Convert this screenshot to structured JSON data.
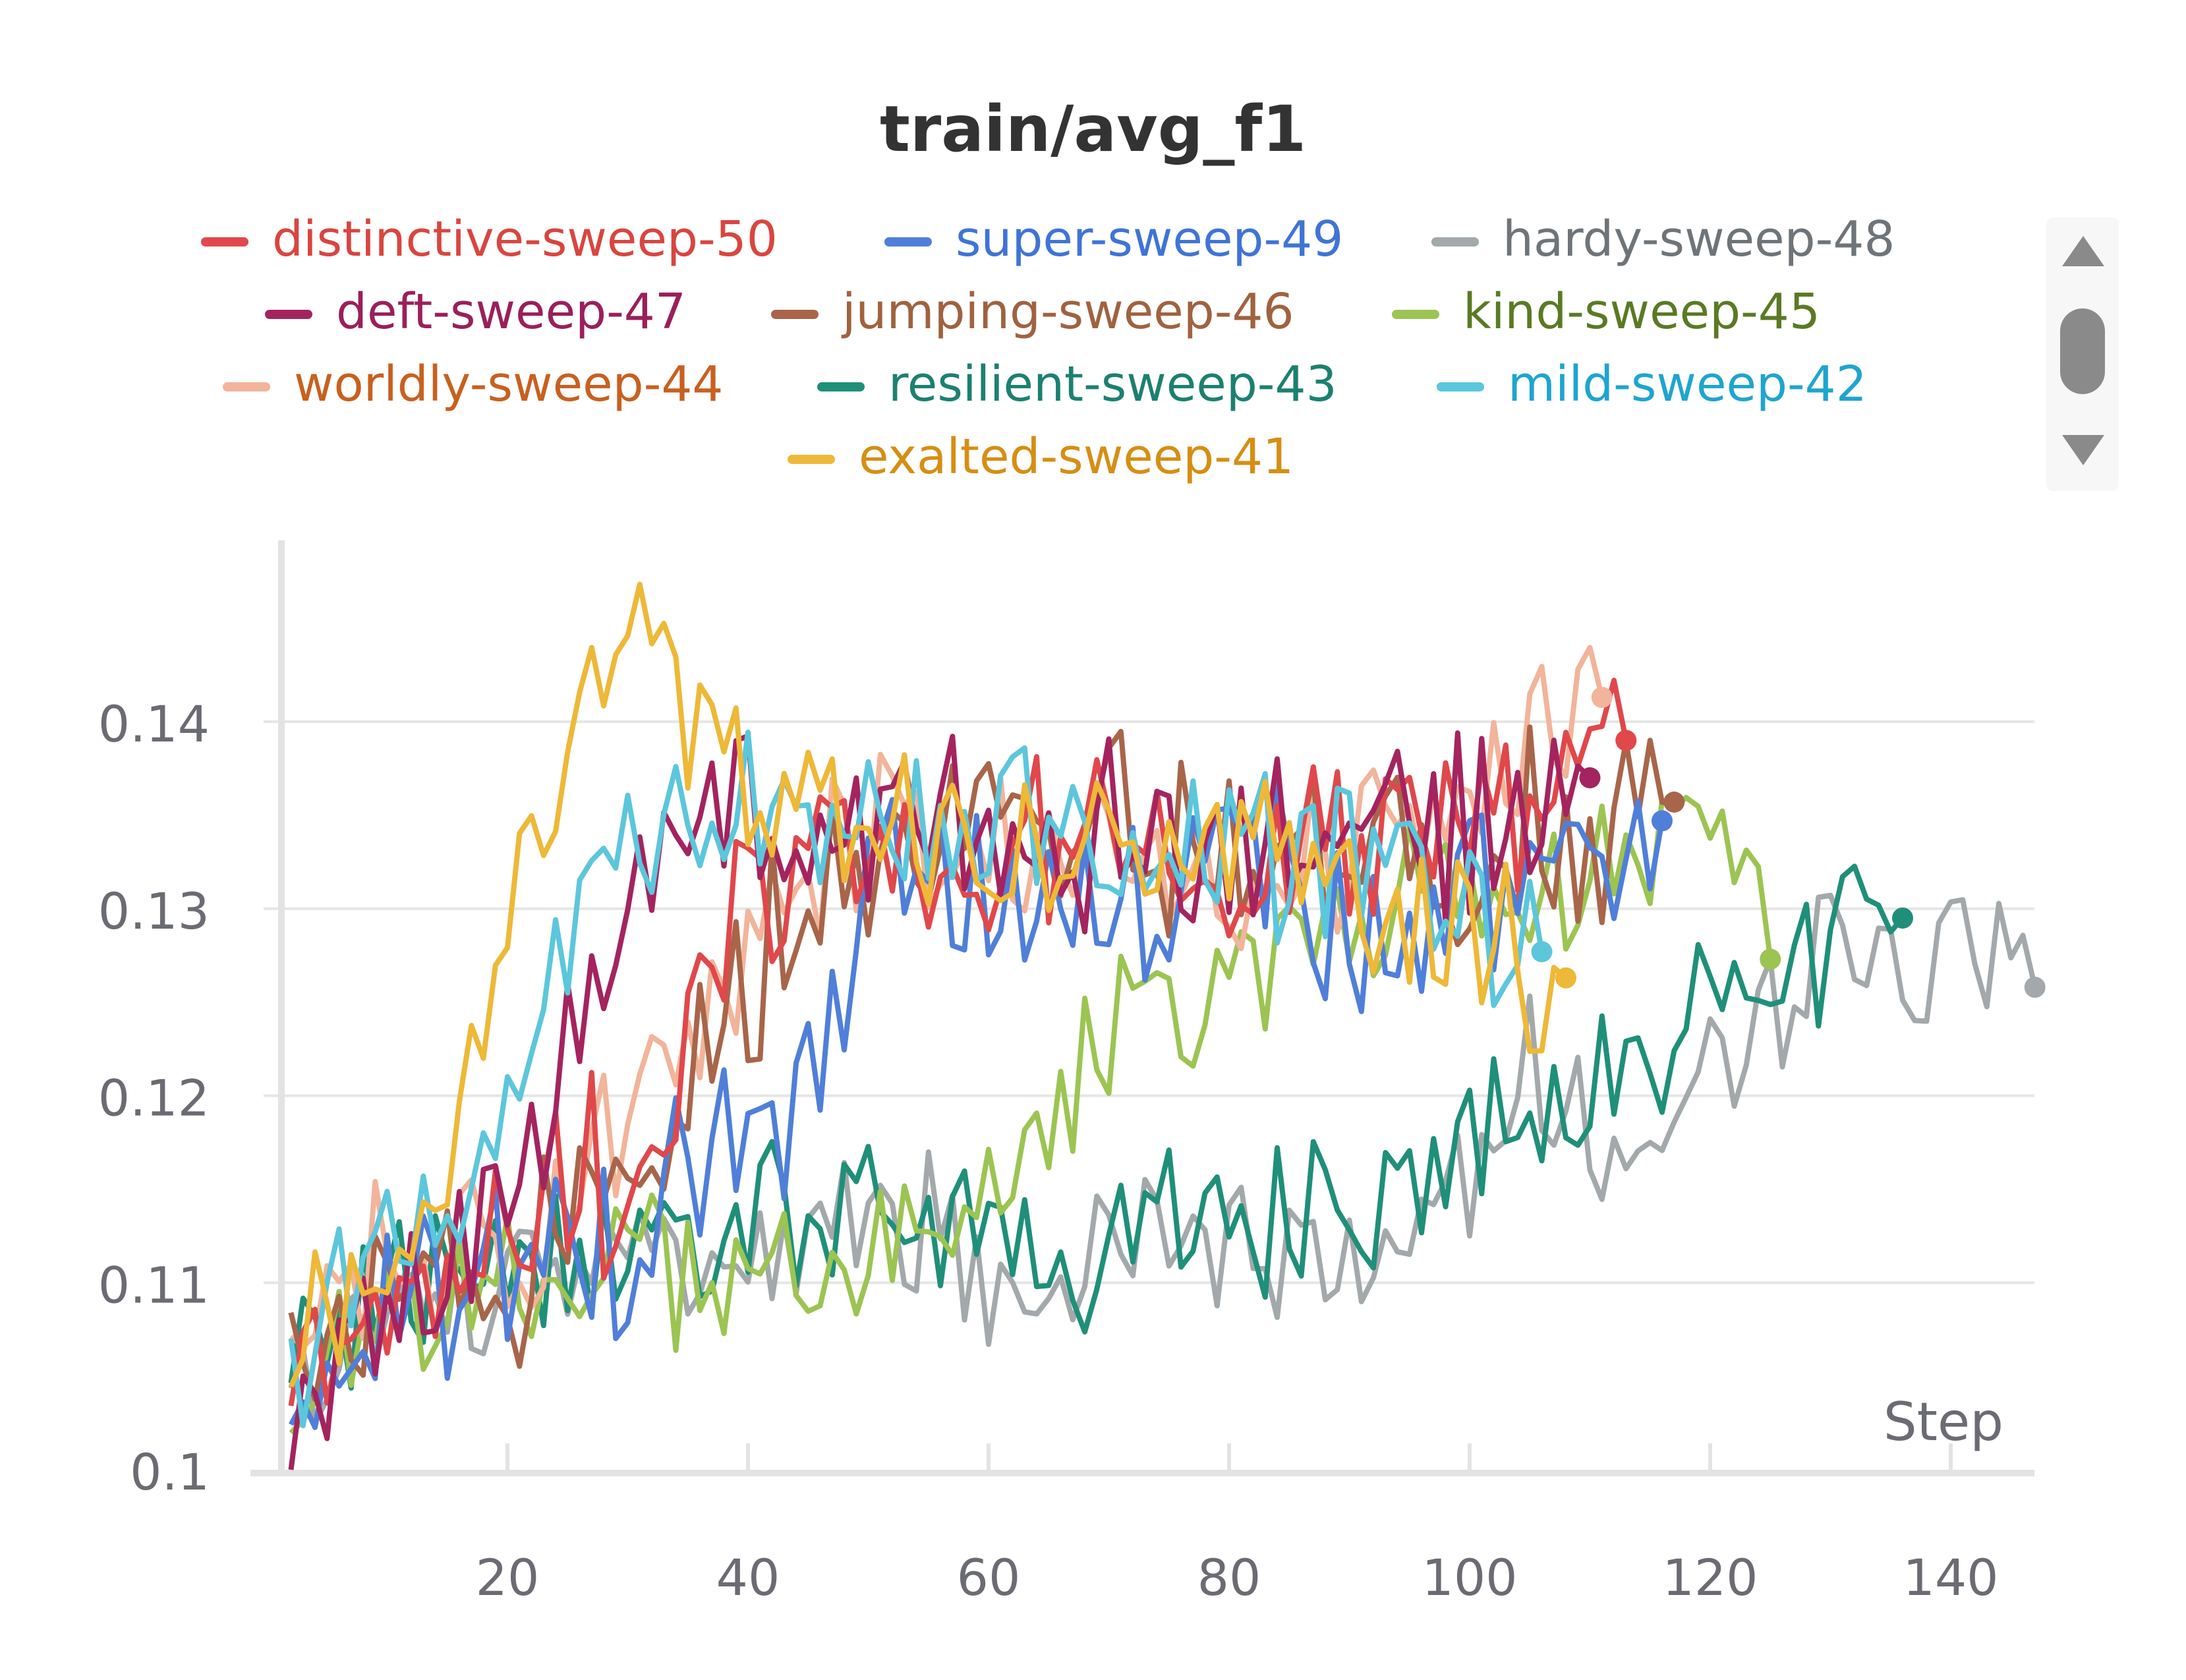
{
  "chart_data": {
    "type": "line",
    "title": "train/avg_f1",
    "xlabel": "Step",
    "ylabel": "",
    "xlim": [
      2,
      147
    ],
    "ylim": [
      0.1,
      0.15
    ],
    "x_ticks": [
      20,
      40,
      60,
      80,
      100,
      120,
      140
    ],
    "x_tick_labels": [
      "20",
      "40",
      "60",
      "80",
      "100",
      "120",
      "140"
    ],
    "y_ticks": [
      0.1,
      0.11,
      0.12,
      0.13,
      0.14
    ],
    "y_tick_labels": [
      "0.1",
      "0.11",
      "0.12",
      "0.13",
      "0.14"
    ],
    "grid": true,
    "legend_position": "top",
    "series": [
      {
        "name": "distinctive-sweep-50",
        "color": "#e0484b",
        "text_color": "#d9453f",
        "end": [
          113,
          0.139
        ],
        "anchors": [
          [
            2,
            0.104
          ],
          [
            8,
            0.108
          ],
          [
            15,
            0.111
          ],
          [
            25,
            0.114
          ],
          [
            32,
            0.118
          ],
          [
            36,
            0.124
          ],
          [
            40,
            0.132
          ],
          [
            50,
            0.134
          ],
          [
            60,
            0.134
          ],
          [
            80,
            0.133
          ],
          [
            100,
            0.134
          ],
          [
            113,
            0.139
          ]
        ],
        "amp": 0.0045,
        "seed": 50
      },
      {
        "name": "super-sweep-49",
        "color": "#4f7fd9",
        "text_color": "#3f74d6",
        "end": [
          116,
          0.1347
        ],
        "anchors": [
          [
            2,
            0.107
          ],
          [
            10,
            0.109
          ],
          [
            20,
            0.111
          ],
          [
            30,
            0.111
          ],
          [
            38,
            0.117
          ],
          [
            44,
            0.119
          ],
          [
            50,
            0.13
          ],
          [
            60,
            0.132
          ],
          [
            80,
            0.132
          ],
          [
            95,
            0.129
          ],
          [
            100,
            0.131
          ],
          [
            116,
            0.1347
          ]
        ],
        "amp": 0.0045,
        "seed": 49
      },
      {
        "name": "hardy-sweep-48",
        "color": "#a3a8ab",
        "text_color": "#6e7478",
        "end": [
          147,
          0.1258
        ],
        "anchors": [
          [
            2,
            0.104
          ],
          [
            15,
            0.109
          ],
          [
            30,
            0.111
          ],
          [
            40,
            0.111
          ],
          [
            50,
            0.113
          ],
          [
            60,
            0.111
          ],
          [
            70,
            0.111
          ],
          [
            80,
            0.111
          ],
          [
            90,
            0.111
          ],
          [
            100,
            0.115
          ],
          [
            104,
            0.122
          ],
          [
            108,
            0.119
          ],
          [
            112,
            0.117
          ],
          [
            120,
            0.121
          ],
          [
            125,
            0.126
          ],
          [
            130,
            0.127
          ],
          [
            135,
            0.128
          ],
          [
            140,
            0.129
          ],
          [
            147,
            0.1258
          ]
        ],
        "amp": 0.004,
        "seed": 48
      },
      {
        "name": "deft-sweep-47",
        "color": "#a3245f",
        "text_color": "#9a1f5a",
        "end": [
          110,
          0.137
        ],
        "anchors": [
          [
            2,
            0.103
          ],
          [
            10,
            0.108
          ],
          [
            18,
            0.112
          ],
          [
            24,
            0.12
          ],
          [
            28,
            0.126
          ],
          [
            32,
            0.132
          ],
          [
            36,
            0.136
          ],
          [
            42,
            0.135
          ],
          [
            60,
            0.134
          ],
          [
            80,
            0.134
          ],
          [
            100,
            0.134
          ],
          [
            110,
            0.137
          ]
        ],
        "amp": 0.004,
        "seed": 47
      },
      {
        "name": "jumping-sweep-46",
        "color": "#a8654a",
        "text_color": "#a0623f",
        "end": [
          117,
          0.1357
        ],
        "anchors": [
          [
            2,
            0.107
          ],
          [
            10,
            0.109
          ],
          [
            20,
            0.11
          ],
          [
            30,
            0.116
          ],
          [
            36,
            0.122
          ],
          [
            40,
            0.127
          ],
          [
            46,
            0.132
          ],
          [
            60,
            0.134
          ],
          [
            80,
            0.133
          ],
          [
            100,
            0.134
          ],
          [
            117,
            0.1357
          ]
        ],
        "amp": 0.0045,
        "seed": 46
      },
      {
        "name": "kind-sweep-45",
        "color": "#9cc452",
        "text_color": "#5a7a24",
        "end": [
          125,
          0.1273
        ],
        "anchors": [
          [
            2,
            0.104
          ],
          [
            10,
            0.108
          ],
          [
            20,
            0.11
          ],
          [
            30,
            0.111
          ],
          [
            40,
            0.111
          ],
          [
            50,
            0.111
          ],
          [
            55,
            0.113
          ],
          [
            60,
            0.117
          ],
          [
            65,
            0.118
          ],
          [
            70,
            0.124
          ],
          [
            75,
            0.125
          ],
          [
            85,
            0.128
          ],
          [
            95,
            0.13
          ],
          [
            105,
            0.131
          ],
          [
            110,
            0.131
          ],
          [
            115,
            0.133
          ],
          [
            120,
            0.135
          ],
          [
            125,
            0.1273
          ]
        ],
        "amp": 0.0035,
        "seed": 45
      },
      {
        "name": "worldly-sweep-44",
        "color": "#f2b49a",
        "text_color": "#c8601f",
        "end": [
          111,
          0.1413
        ],
        "anchors": [
          [
            2,
            0.105
          ],
          [
            10,
            0.112
          ],
          [
            20,
            0.111
          ],
          [
            30,
            0.117
          ],
          [
            36,
            0.124
          ],
          [
            40,
            0.128
          ],
          [
            50,
            0.134
          ],
          [
            60,
            0.132
          ],
          [
            70,
            0.132
          ],
          [
            80,
            0.131
          ],
          [
            95,
            0.134
          ],
          [
            111,
            0.1413
          ]
        ],
        "amp": 0.004,
        "seed": 44
      },
      {
        "name": "resilient-sweep-43",
        "color": "#1f8f7a",
        "text_color": "#1c8070",
        "end": [
          136,
          0.1295
        ],
        "anchors": [
          [
            2,
            0.106
          ],
          [
            10,
            0.109
          ],
          [
            20,
            0.111
          ],
          [
            30,
            0.112
          ],
          [
            40,
            0.113
          ],
          [
            50,
            0.114
          ],
          [
            60,
            0.112
          ],
          [
            70,
            0.111
          ],
          [
            80,
            0.113
          ],
          [
            90,
            0.114
          ],
          [
            100,
            0.116
          ],
          [
            105,
            0.12
          ],
          [
            110,
            0.12
          ],
          [
            115,
            0.121
          ],
          [
            120,
            0.125
          ],
          [
            125,
            0.126
          ],
          [
            130,
            0.128
          ],
          [
            136,
            0.1295
          ]
        ],
        "amp": 0.0038,
        "seed": 43
      },
      {
        "name": "mild-sweep-42",
        "color": "#5cc6dc",
        "text_color": "#1ea5cf",
        "end": [
          106,
          0.1277
        ],
        "anchors": [
          [
            2,
            0.104
          ],
          [
            8,
            0.111
          ],
          [
            14,
            0.113
          ],
          [
            20,
            0.12
          ],
          [
            24,
            0.125
          ],
          [
            28,
            0.131
          ],
          [
            32,
            0.135
          ],
          [
            38,
            0.136
          ],
          [
            44,
            0.134
          ],
          [
            60,
            0.134
          ],
          [
            80,
            0.133
          ],
          [
            100,
            0.131
          ],
          [
            106,
            0.1277
          ]
        ],
        "amp": 0.004,
        "seed": 42
      },
      {
        "name": "exalted-sweep-41",
        "color": "#eeb838",
        "text_color": "#d68e13",
        "end": [
          108,
          0.1263
        ],
        "anchors": [
          [
            2,
            0.105
          ],
          [
            6,
            0.111
          ],
          [
            12,
            0.112
          ],
          [
            16,
            0.12
          ],
          [
            20,
            0.128
          ],
          [
            24,
            0.136
          ],
          [
            28,
            0.143
          ],
          [
            30,
            0.146
          ],
          [
            34,
            0.14
          ],
          [
            40,
            0.136
          ],
          [
            60,
            0.134
          ],
          [
            80,
            0.133
          ],
          [
            100,
            0.129
          ],
          [
            108,
            0.1263
          ]
        ],
        "amp": 0.004,
        "seed": 41
      }
    ]
  }
}
